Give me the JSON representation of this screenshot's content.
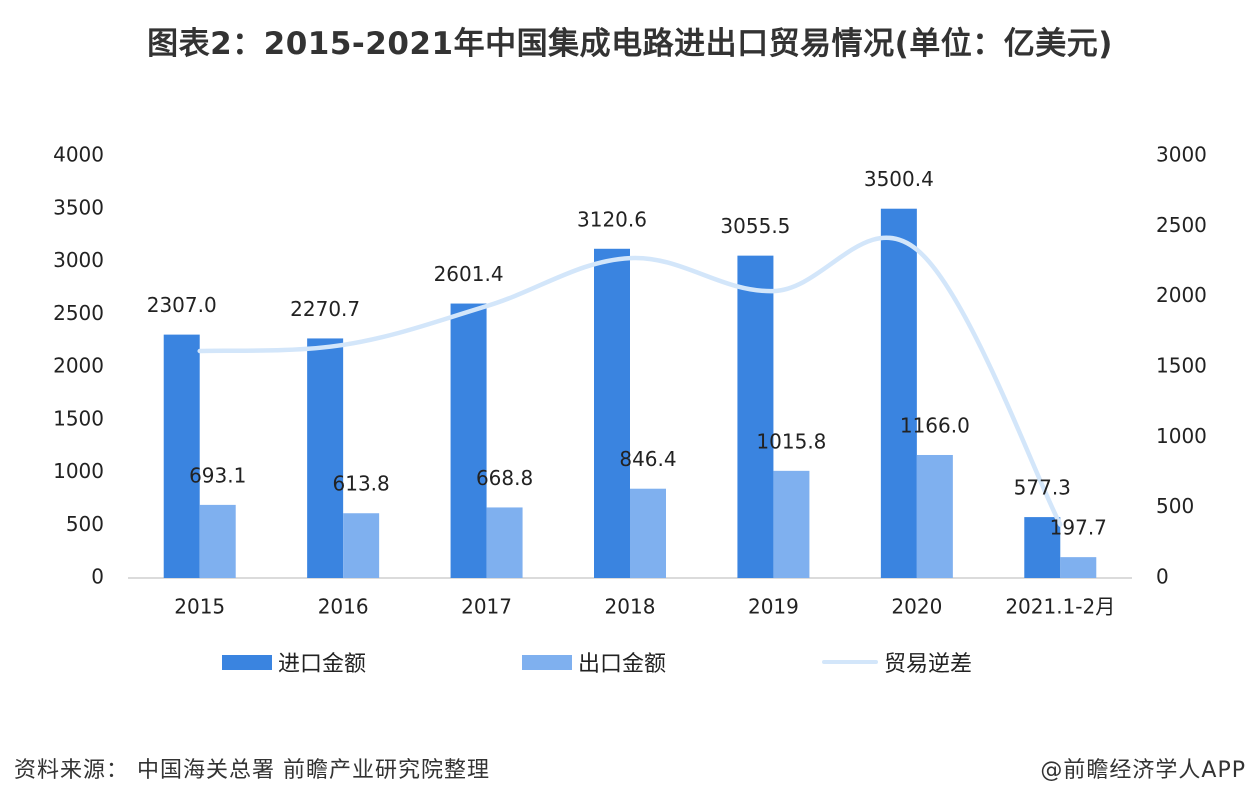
{
  "title": "图表2：2015-2021年中国集成电路进出口贸易情况(单位：亿美元)",
  "source": "资料来源： 中国海关总署 前瞻产业研究院整理",
  "brand": "@前瞻经济学人APP",
  "colors": {
    "import": "#3a84e0",
    "export": "#7fb0ef",
    "deficit": "#d3e6fa"
  },
  "chart_data": {
    "type": "bar",
    "categories": [
      "2015",
      "2016",
      "2017",
      "2018",
      "2019",
      "2020",
      "2021.1-2月"
    ],
    "series": [
      {
        "name": "进口金额",
        "type": "bar",
        "axis": "left",
        "values": [
          2307.0,
          2270.7,
          2601.4,
          3120.6,
          3055.5,
          3500.4,
          577.3
        ]
      },
      {
        "name": "出口金额",
        "type": "bar",
        "axis": "left",
        "values": [
          693.1,
          613.8,
          668.8,
          846.4,
          1015.8,
          1166.0,
          197.7
        ]
      },
      {
        "name": "贸易逆差",
        "type": "line",
        "axis": "right",
        "values": [
          1613.9,
          1656.9,
          1932.6,
          2274.2,
          2039.7,
          2334.4,
          379.6
        ]
      }
    ],
    "data_labels": {
      "import": [
        "2307.0",
        "2270.7",
        "2601.4",
        "3120.6",
        "3055.5",
        "3500.4",
        "577.3"
      ],
      "export": [
        "693.1",
        "613.8",
        "668.8",
        "846.4",
        "1015.8",
        "1166.0",
        "197.7"
      ]
    },
    "y_left": {
      "min": 0,
      "max": 4000,
      "ticks": [
        "0",
        "500",
        "1000",
        "1500",
        "2000",
        "2500",
        "3000",
        "3500",
        "4000"
      ]
    },
    "y_right": {
      "min": 0,
      "max": 3000,
      "ticks": [
        "0",
        "500",
        "1000",
        "1500",
        "2000",
        "2500",
        "3000"
      ]
    },
    "grid": false,
    "legend_position": "bottom"
  },
  "legend": {
    "import": "进口金额",
    "export": "出口金额",
    "deficit": "贸易逆差"
  }
}
